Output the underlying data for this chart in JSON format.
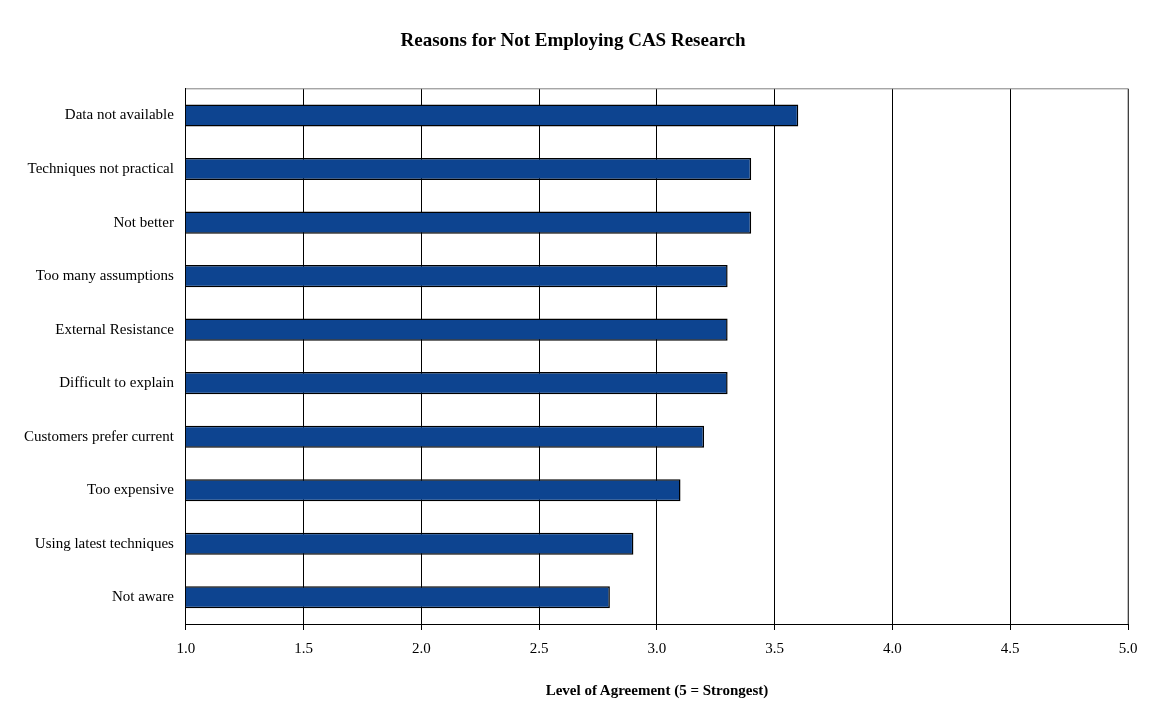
{
  "chart_data": {
    "type": "bar",
    "orientation": "horizontal",
    "title": "Reasons for Not Employing CAS Research",
    "xlabel": "Level of Agreement (5 = Strongest)",
    "categories": [
      "Data not available",
      "Techniques not practical",
      "Not better",
      "Too many assumptions",
      "External Resistance",
      "Difficult to explain",
      "Customers prefer current",
      "Too expensive",
      "Using latest techniques",
      "Not aware"
    ],
    "values": [
      3.6,
      3.4,
      3.4,
      3.3,
      3.3,
      3.3,
      3.2,
      3.1,
      2.9,
      2.8
    ],
    "color": "#0d4490",
    "xlim": [
      1.0,
      5.0
    ],
    "xticks": [
      {
        "value": 1,
        "label": "1.0"
      },
      {
        "value": 1.5,
        "label": "1.5"
      },
      {
        "value": 2,
        "label": "2.0"
      },
      {
        "value": 2.5,
        "label": "2.5"
      },
      {
        "value": 3,
        "label": "3.0"
      },
      {
        "value": 3.5,
        "label": "3.5"
      },
      {
        "value": 4,
        "label": "4.0"
      },
      {
        "value": 4.5,
        "label": "4.5"
      },
      {
        "value": 5,
        "label": "5.0"
      }
    ],
    "grid": "x",
    "legend": false
  }
}
